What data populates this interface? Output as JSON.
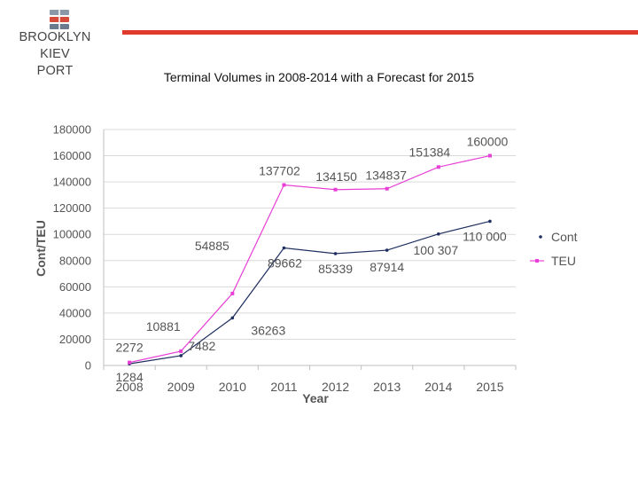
{
  "header": {
    "logo_icon": "port-container-stack-icon",
    "logo_line1": "BROOKLYN KIEV",
    "logo_line2": "PORT",
    "accent_color": "#e03a2c"
  },
  "chart_data": {
    "type": "line",
    "title": "Terminal Volumes in 2008-2014 with a Forecast for 2015",
    "xlabel": "Year",
    "ylabel": "Cont/TEU",
    "categories": [
      "2008",
      "2009",
      "2010",
      "2011",
      "2012",
      "2013",
      "2014",
      "2015"
    ],
    "ylim": [
      0,
      180000
    ],
    "yticks": [
      "0",
      "20000",
      "40000",
      "60000",
      "80000",
      "100000",
      "120000",
      "140000",
      "160000",
      "180000"
    ],
    "grid": true,
    "legend_position": "right",
    "series": [
      {
        "name": "Cont",
        "color": "#1f2f5f",
        "values": [
          1284,
          7482,
          36263,
          89662,
          85339,
          87914,
          100307,
          110000
        ],
        "labels": [
          "1284",
          "7482",
          "36263",
          "89662",
          "85339",
          "87914",
          "100 307",
          "110 000"
        ]
      },
      {
        "name": "TEU",
        "color": "#e83fd6",
        "values": [
          2272,
          10881,
          54885,
          137702,
          134150,
          134837,
          151384,
          160000
        ],
        "labels": [
          "2272",
          "10881",
          "54885",
          "137702",
          "134150",
          "134837",
          "151384",
          "160000"
        ]
      }
    ]
  }
}
